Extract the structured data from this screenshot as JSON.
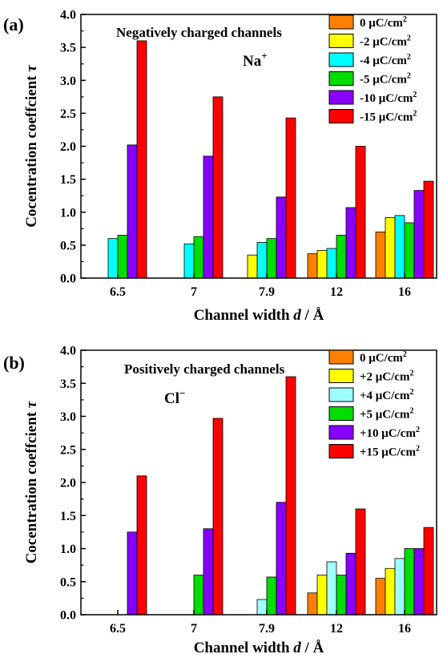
{
  "chart_data": [
    {
      "panel": "(a)",
      "type": "bar",
      "title": "Negatively charged channels",
      "annotation": "Na",
      "annotation_sup": "+",
      "xlabel": "Channel width ",
      "xlabel_var": "d",
      "xlabel_unit": " / Å",
      "ylabel": "Cocentration coeffcient ",
      "ylabel_var": "τ",
      "ylim": [
        0,
        4.0
      ],
      "yticks": [
        "0.0",
        "0.5",
        "1.0",
        "1.5",
        "2.0",
        "2.5",
        "3.0",
        "3.5",
        "4.0"
      ],
      "categories": [
        "6.5",
        "7",
        "7.9",
        "12",
        "16"
      ],
      "legend_position": "top-right",
      "series": [
        {
          "name": "0 μC/cm",
          "name_sup": "2",
          "color": "#ff8000",
          "values": [
            null,
            null,
            null,
            0.37,
            0.7
          ]
        },
        {
          "name": "-2 μC/cm",
          "name_sup": "2",
          "color": "#ffff00",
          "values": [
            null,
            null,
            0.35,
            0.42,
            0.92
          ]
        },
        {
          "name": "-4 μC/cm",
          "name_sup": "2",
          "color": "#00ffff",
          "values": [
            0.6,
            0.52,
            0.54,
            0.45,
            0.95
          ]
        },
        {
          "name": "-5 μC/cm",
          "name_sup": "2",
          "color": "#00dd00",
          "values": [
            0.65,
            0.63,
            0.6,
            0.65,
            0.84
          ]
        },
        {
          "name": "-10 μC/cm",
          "name_sup": "2",
          "color": "#8800ff",
          "values": [
            2.02,
            1.85,
            1.23,
            1.07,
            1.33
          ]
        },
        {
          "name": "-15 μC/cm",
          "name_sup": "2",
          "color": "#ff0000",
          "values": [
            3.6,
            2.75,
            2.43,
            2.0,
            1.47
          ]
        }
      ]
    },
    {
      "panel": "(b)",
      "type": "bar",
      "title": "Positively charged channels",
      "annotation": "Cl",
      "annotation_sup": "−",
      "xlabel": "Channel width ",
      "xlabel_var": "d",
      "xlabel_unit": " / Å",
      "ylabel": "Cocentration coeffcient ",
      "ylabel_var": "τ",
      "ylim": [
        0,
        4.0
      ],
      "yticks": [
        "0.0",
        "0.5",
        "1.0",
        "1.5",
        "2.0",
        "2.5",
        "3.0",
        "3.5",
        "4.0"
      ],
      "categories": [
        "6.5",
        "7",
        "7.9",
        "12",
        "16"
      ],
      "legend_position": "top-right",
      "series": [
        {
          "name": "0 μC/cm",
          "name_sup": "2",
          "color": "#ff8000",
          "values": [
            null,
            null,
            null,
            0.33,
            0.55
          ]
        },
        {
          "name": "+2 μC/cm",
          "name_sup": "2",
          "color": "#ffff00",
          "values": [
            null,
            null,
            null,
            0.6,
            0.7
          ]
        },
        {
          "name": "+4 μC/cm",
          "name_sup": "2",
          "color": "#a0ffff",
          "values": [
            null,
            null,
            0.23,
            0.8,
            0.85
          ]
        },
        {
          "name": "+5 μC/cm",
          "name_sup": "2",
          "color": "#00dd00",
          "values": [
            null,
            0.6,
            0.57,
            0.6,
            1.0
          ]
        },
        {
          "name": "+10 μC/cm",
          "name_sup": "2",
          "color": "#8800ff",
          "values": [
            1.25,
            1.3,
            1.7,
            0.93,
            1.0
          ]
        },
        {
          "name": "+15 μC/cm",
          "name_sup": "2",
          "color": "#ff0000",
          "values": [
            2.1,
            2.97,
            3.6,
            1.6,
            1.32
          ]
        }
      ]
    }
  ]
}
